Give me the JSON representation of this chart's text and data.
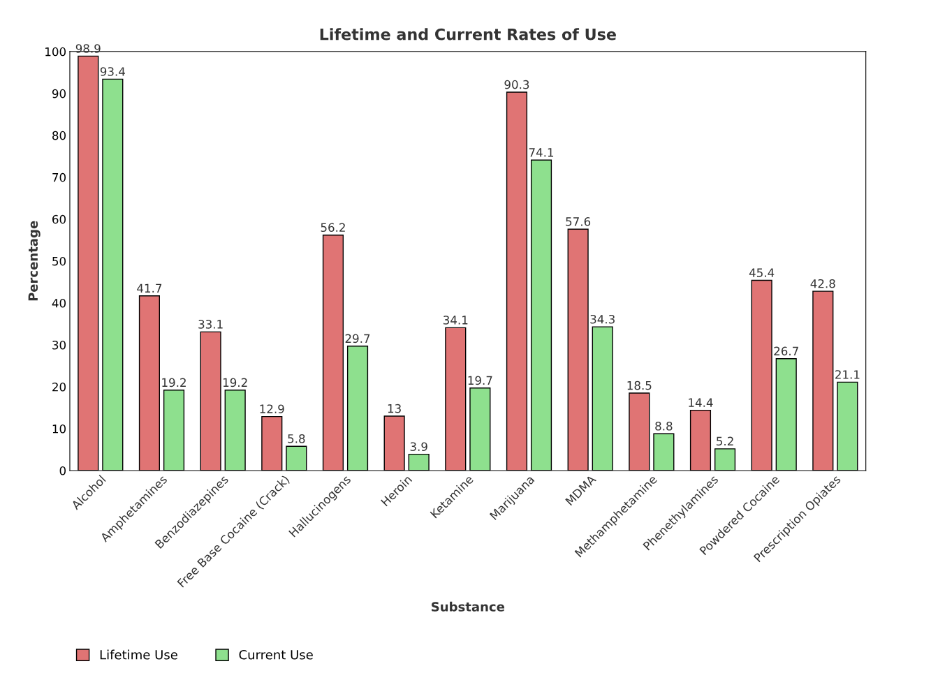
{
  "chart_data": {
    "type": "bar",
    "title": "Lifetime and Current Rates of Use",
    "xlabel": "Substance",
    "ylabel": "Percentage",
    "categories": [
      "Alcohol",
      "Amphetamines",
      "Benzodiazepines",
      "Free Base Cocaine (Crack)",
      "Hallucinogens",
      "Heroin",
      "Ketamine",
      "Marijuana",
      "MDMA",
      "Methamphetamine",
      "Phenethylamines",
      "Powdered Cocaine",
      "Prescription Opiates"
    ],
    "series": [
      {
        "name": "Lifetime Use",
        "color": "#e07474",
        "values": [
          98.9,
          41.7,
          33.1,
          12.9,
          56.2,
          13,
          34.1,
          90.3,
          57.6,
          18.5,
          14.4,
          45.4,
          42.8
        ]
      },
      {
        "name": "Current Use",
        "color": "#8ee08e",
        "values": [
          93.4,
          19.2,
          19.2,
          5.8,
          29.7,
          3.9,
          19.7,
          74.1,
          34.3,
          8.8,
          5.2,
          26.7,
          21.1
        ]
      }
    ],
    "ylim": [
      0,
      100
    ],
    "yticks": [
      0,
      10,
      20,
      30,
      40,
      50,
      60,
      70,
      80,
      90,
      100
    ],
    "data_labels": true,
    "grid": false,
    "legend": "bottom left"
  }
}
